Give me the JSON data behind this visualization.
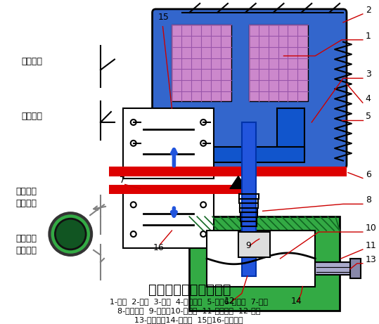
{
  "title": "通电延时型时间继电器",
  "caption_line1": "1-线圈  2-铁心  3-衔铁  4-反力弹簧  5-推板6-活塞杆  7-杠杆",
  "caption_line2": "8-塔形弹簧  9-弱弹簧10-橡皮膜  11-空气室壁  12-活塞",
  "caption_line3": "13-调节螺杆14-进气孔  15、16-微动开关",
  "bg_color": "#ffffff",
  "blue_main": "#3366cc",
  "blue_dark": "#1a3399",
  "blue_light": "#4488ee",
  "green_main": "#33aa44",
  "green_hatched": "#22aa33",
  "red_bar": "#dd0000",
  "purple_grid": "#cc88cc",
  "gray_device": "#aaaacc",
  "label_color": "#cc0000"
}
